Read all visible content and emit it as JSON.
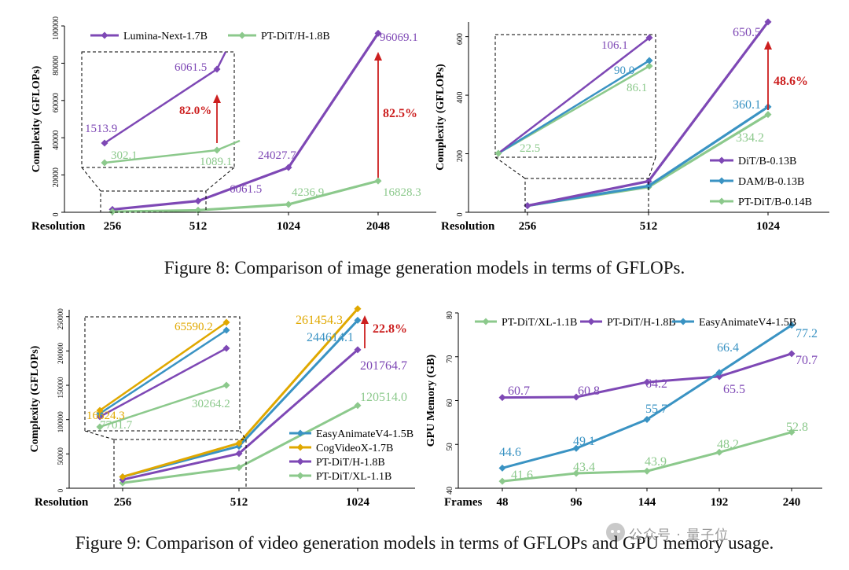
{
  "figure8": {
    "caption": "Figure 8: Comparison of image generation models in terms of GFLOPs."
  },
  "figure9": {
    "caption": "Figure 9: Comparison of video generation models in terms of GFLOPs and GPU memory usage."
  },
  "watermark": "公众号 · 量子位",
  "chart_data": [
    {
      "id": "c1",
      "type": "line",
      "ylabel": "Complexity (GFLOPs)",
      "x_axis_title": "Resolution",
      "categories": [
        "256",
        "512",
        "1024",
        "2048"
      ],
      "ylim": [
        0,
        100000
      ],
      "yticks": [
        "0",
        "20000",
        "40000",
        "60000",
        "80000",
        "100000"
      ],
      "legend_position": "top-left",
      "series": [
        {
          "name": "Lumina-Next-1.7B",
          "color": "#7e48b5",
          "values": [
            1513.9,
            6061.5,
            24027.7,
            96069.1
          ]
        },
        {
          "name": "PT-DiT/H-1.8B",
          "color": "#8cc98c",
          "values": [
            302.1,
            1089.1,
            4236.9,
            16828.3
          ]
        }
      ],
      "point_labels": [
        "6061.5",
        "24027.7",
        "96069.1",
        "4236.9",
        "16828.3"
      ],
      "inset": {
        "labels": [
          "1513.9",
          "6061.5",
          "302.1",
          "1089.1"
        ],
        "arrow_label": "82.0%"
      },
      "arrow_label": "82.5%"
    },
    {
      "id": "c2",
      "type": "line",
      "ylabel": "Complexity (GFLOPs)",
      "x_axis_title": "Resolution",
      "categories": [
        "256",
        "512",
        "1024"
      ],
      "ylim": [
        0,
        650
      ],
      "yticks": [
        "0",
        "200",
        "400",
        "600"
      ],
      "legend_position": "bottom-right",
      "series": [
        {
          "name": "DiT/B-0.13B",
          "color": "#7e48b5",
          "values": [
            22.5,
            106.1,
            650.5
          ]
        },
        {
          "name": "DAM/B-0.13B",
          "color": "#3a93c3",
          "values": [
            22.5,
            90.0,
            360.1
          ]
        },
        {
          "name": "PT-DiT/B-0.14B",
          "color": "#8cc98c",
          "values": [
            22.5,
            86.1,
            334.2
          ]
        }
      ],
      "point_labels": [
        "650.5",
        "360.1",
        "334.2"
      ],
      "inset": {
        "labels": [
          "106.1",
          "90.0",
          "86.1",
          "22.5"
        ]
      },
      "arrow_label": "48.6%"
    },
    {
      "id": "c3",
      "type": "line",
      "ylabel": "Complexity (GFLOPs)",
      "x_axis_title": "Resolution",
      "categories": [
        "256",
        "512",
        "1024"
      ],
      "ylim": [
        0,
        260000
      ],
      "yticks": [
        "0",
        "50000",
        "100000",
        "150000",
        "200000",
        "250000"
      ],
      "legend_position": "bottom-right",
      "series": [
        {
          "name": "EasyAnimateV4-1.5B",
          "color": "#3a93c3",
          "values": [
            16624.3,
            61154.0,
            244614.1
          ]
        },
        {
          "name": "CogVideoX-1.7B",
          "color": "#e0a800",
          "values": [
            16624.3,
            65590.2,
            261454.3
          ]
        },
        {
          "name": "PT-DiT/H-1.8B",
          "color": "#7e48b5",
          "values": [
            12500.0,
            50500.0,
            201764.7
          ]
        },
        {
          "name": "PT-DiT/XL-1.1B",
          "color": "#8cc98c",
          "values": [
            7701.7,
            30264.2,
            120514.0
          ]
        }
      ],
      "point_labels": [
        "261454.3",
        "244614.1",
        "201764.7",
        "120514.0"
      ],
      "inset": {
        "labels": [
          "65590.2",
          "16624.3",
          "30264.2",
          "7701.7"
        ]
      },
      "arrow_label": "22.8%"
    },
    {
      "id": "c4",
      "type": "line",
      "ylabel": "GPU Memory (GB)",
      "x_axis_title": "Frames",
      "categories": [
        "48",
        "96",
        "144",
        "192",
        "240"
      ],
      "ylim": [
        40,
        80
      ],
      "yticks": [
        "40",
        "50",
        "60",
        "70",
        "80"
      ],
      "legend_position": "top",
      "series": [
        {
          "name": "PT-DiT/XL-1.1B",
          "color": "#8cc98c",
          "values": [
            41.6,
            43.4,
            43.9,
            48.2,
            52.8
          ]
        },
        {
          "name": "PT-DiT/H-1.8B",
          "color": "#7e48b5",
          "values": [
            60.7,
            60.8,
            64.2,
            65.5,
            70.7
          ]
        },
        {
          "name": "EasyAnimateV4-1.5B",
          "color": "#3a93c3",
          "values": [
            44.6,
            49.1,
            55.7,
            66.4,
            77.2
          ]
        }
      ],
      "point_labels": [
        "41.6",
        "43.4",
        "43.9",
        "48.2",
        "52.8",
        "60.7",
        "60.8",
        "64.2",
        "65.5",
        "70.7",
        "44.6",
        "49.1",
        "55.7",
        "66.4",
        "77.2"
      ]
    }
  ]
}
